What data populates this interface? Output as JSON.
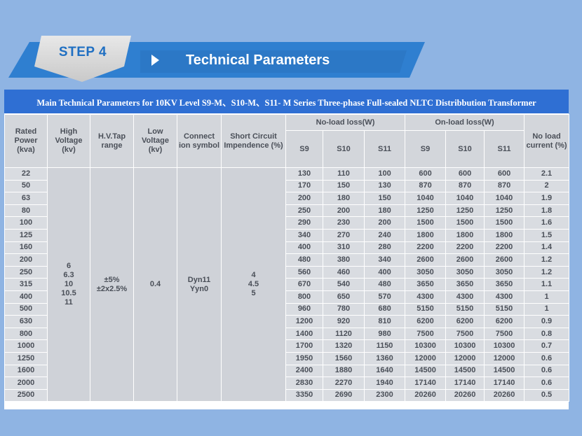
{
  "header": {
    "step_label": "STEP 4",
    "title": "Technical Parameters"
  },
  "table": {
    "caption": "Main Technical Parameters for 10KV Level S9-M、S10-M、S11- M Series Three-phase Full-sealed NLTC Distribbution Transformer",
    "headers": {
      "rated_power": "Rated Power (kva)",
      "high_voltage": "High Voltage (kv)",
      "hv_tap": "H.V.Tap range",
      "low_voltage": "Low Voltage (kv)",
      "connection": "Connect ion symbol",
      "impedance": "Short Circuit Impendence (%)",
      "no_load_loss": "No-load loss(W)",
      "on_load_loss": "On-load loss(W)",
      "no_load_current": "No load current (%)",
      "s9": "S9",
      "s10": "S10",
      "s11": "S11"
    },
    "merged": {
      "high_voltage": "6 6.3 10 10.5 11",
      "hv_tap": "±5% ±2x2.5%",
      "low_voltage": "0.4",
      "connection": "Dyn11 Yyn0",
      "impedance": "4 4.5 5"
    },
    "rows": [
      {
        "power": "22",
        "nl_s9": "130",
        "nl_s10": "110",
        "nl_s11": "100",
        "ol_s9": "600",
        "ol_s10": "600",
        "ol_s11": "600",
        "current": "2.1"
      },
      {
        "power": "50",
        "nl_s9": "170",
        "nl_s10": "150",
        "nl_s11": "130",
        "ol_s9": "870",
        "ol_s10": "870",
        "ol_s11": "870",
        "current": "2"
      },
      {
        "power": "63",
        "nl_s9": "200",
        "nl_s10": "180",
        "nl_s11": "150",
        "ol_s9": "1040",
        "ol_s10": "1040",
        "ol_s11": "1040",
        "current": "1.9"
      },
      {
        "power": "80",
        "nl_s9": "250",
        "nl_s10": "200",
        "nl_s11": "180",
        "ol_s9": "1250",
        "ol_s10": "1250",
        "ol_s11": "1250",
        "current": "1.8"
      },
      {
        "power": "100",
        "nl_s9": "290",
        "nl_s10": "230",
        "nl_s11": "200",
        "ol_s9": "1500",
        "ol_s10": "1500",
        "ol_s11": "1500",
        "current": "1.6"
      },
      {
        "power": "125",
        "nl_s9": "340",
        "nl_s10": "270",
        "nl_s11": "240",
        "ol_s9": "1800",
        "ol_s10": "1800",
        "ol_s11": "1800",
        "current": "1.5"
      },
      {
        "power": "160",
        "nl_s9": "400",
        "nl_s10": "310",
        "nl_s11": "280",
        "ol_s9": "2200",
        "ol_s10": "2200",
        "ol_s11": "2200",
        "current": "1.4"
      },
      {
        "power": "200",
        "nl_s9": "480",
        "nl_s10": "380",
        "nl_s11": "340",
        "ol_s9": "2600",
        "ol_s10": "2600",
        "ol_s11": "2600",
        "current": "1.2"
      },
      {
        "power": "250",
        "nl_s9": "560",
        "nl_s10": "460",
        "nl_s11": "400",
        "ol_s9": "3050",
        "ol_s10": "3050",
        "ol_s11": "3050",
        "current": "1.2"
      },
      {
        "power": "315",
        "nl_s9": "670",
        "nl_s10": "540",
        "nl_s11": "480",
        "ol_s9": "3650",
        "ol_s10": "3650",
        "ol_s11": "3650",
        "current": "1.1"
      },
      {
        "power": "400",
        "nl_s9": "800",
        "nl_s10": "650",
        "nl_s11": "570",
        "ol_s9": "4300",
        "ol_s10": "4300",
        "ol_s11": "4300",
        "current": "1"
      },
      {
        "power": "500",
        "nl_s9": "960",
        "nl_s10": "780",
        "nl_s11": "680",
        "ol_s9": "5150",
        "ol_s10": "5150",
        "ol_s11": "5150",
        "current": "1"
      },
      {
        "power": "630",
        "nl_s9": "1200",
        "nl_s10": "920",
        "nl_s11": "810",
        "ol_s9": "6200",
        "ol_s10": "6200",
        "ol_s11": "6200",
        "current": "0.9"
      },
      {
        "power": "800",
        "nl_s9": "1400",
        "nl_s10": "1120",
        "nl_s11": "980",
        "ol_s9": "7500",
        "ol_s10": "7500",
        "ol_s11": "7500",
        "current": "0.8"
      },
      {
        "power": "1000",
        "nl_s9": "1700",
        "nl_s10": "1320",
        "nl_s11": "1150",
        "ol_s9": "10300",
        "ol_s10": "10300",
        "ol_s11": "10300",
        "current": "0.7"
      },
      {
        "power": "1250",
        "nl_s9": "1950",
        "nl_s10": "1560",
        "nl_s11": "1360",
        "ol_s9": "12000",
        "ol_s10": "12000",
        "ol_s11": "12000",
        "current": "0.6"
      },
      {
        "power": "1600",
        "nl_s9": "2400",
        "nl_s10": "1880",
        "nl_s11": "1640",
        "ol_s9": "14500",
        "ol_s10": "14500",
        "ol_s11": "14500",
        "current": "0.6"
      },
      {
        "power": "2000",
        "nl_s9": "2830",
        "nl_s10": "2270",
        "nl_s11": "1940",
        "ol_s9": "17140",
        "ol_s10": "17140",
        "ol_s11": "17140",
        "current": "0.6"
      },
      {
        "power": "2500",
        "nl_s9": "3350",
        "nl_s10": "2690",
        "nl_s11": "2300",
        "ol_s9": "20260",
        "ol_s10": "20260",
        "ol_s11": "20260",
        "current": "0.5"
      }
    ]
  }
}
